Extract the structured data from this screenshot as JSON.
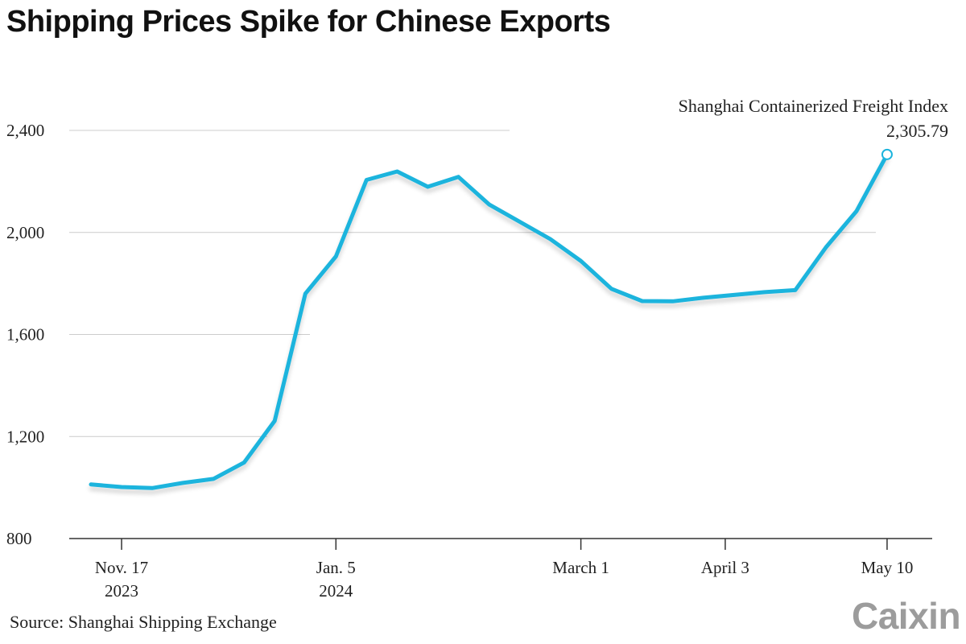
{
  "title": "Shipping Prices Spike for Chinese Exports",
  "source": "Source: Shanghai Shipping Exchange",
  "logo": "Caixin",
  "colors": {
    "line": "#1cb4dd",
    "grid": "#cccccc",
    "text": "#222222",
    "logo": "#9c9c9c"
  },
  "chart_data": {
    "type": "line",
    "title": "Shipping Prices Spike for Chinese Exports",
    "xlabel": "",
    "ylabel": "",
    "ylim": [
      800,
      2400
    ],
    "yticks": [
      {
        "value": 2400,
        "label": "2,400"
      },
      {
        "value": 2000,
        "label": "2,000"
      },
      {
        "value": 1600,
        "label": "1,600"
      },
      {
        "value": 1200,
        "label": "1,200"
      },
      {
        "value": 800,
        "label": "800"
      }
    ],
    "xlim": [
      "2023-11-10",
      "2024-05-17"
    ],
    "xticks": [
      {
        "date": "2023-11-17",
        "label": "Nov. 17",
        "sublabel": "2023"
      },
      {
        "date": "2024-01-05",
        "label": "Jan. 5",
        "sublabel": "2024"
      },
      {
        "date": "2024-03-01",
        "label": "March 1",
        "sublabel": ""
      },
      {
        "date": "2024-04-03",
        "label": "April 3",
        "sublabel": ""
      },
      {
        "date": "2024-05-10",
        "label": "May 10",
        "sublabel": ""
      }
    ],
    "series": [
      {
        "name": "Shanghai Containerized Freight Index",
        "points": [
          {
            "x": "2023-11-10",
            "y": 1012
          },
          {
            "x": "2023-11-17",
            "y": 1002
          },
          {
            "x": "2023-11-24",
            "y": 998
          },
          {
            "x": "2023-12-01",
            "y": 1018
          },
          {
            "x": "2023-12-08",
            "y": 1034
          },
          {
            "x": "2023-12-15",
            "y": 1098
          },
          {
            "x": "2023-12-22",
            "y": 1261
          },
          {
            "x": "2023-12-29",
            "y": 1760
          },
          {
            "x": "2024-01-05",
            "y": 1906
          },
          {
            "x": "2024-01-12",
            "y": 2206
          },
          {
            "x": "2024-01-19",
            "y": 2239
          },
          {
            "x": "2024-01-26",
            "y": 2179
          },
          {
            "x": "2024-02-02",
            "y": 2218
          },
          {
            "x": "2024-02-09",
            "y": 2110
          },
          {
            "x": "2024-02-23",
            "y": 1974
          },
          {
            "x": "2024-03-01",
            "y": 1888
          },
          {
            "x": "2024-03-08",
            "y": 1779
          },
          {
            "x": "2024-03-15",
            "y": 1731
          },
          {
            "x": "2024-03-22",
            "y": 1730
          },
          {
            "x": "2024-03-29",
            "y": 1744
          },
          {
            "x": "2024-04-12",
            "y": 1766
          },
          {
            "x": "2024-04-19",
            "y": 1774
          },
          {
            "x": "2024-04-26",
            "y": 1941
          },
          {
            "x": "2024-05-03",
            "y": 2083
          },
          {
            "x": "2024-05-10",
            "y": 2305.79
          }
        ]
      }
    ],
    "annotation": {
      "label": "Shanghai Containerized Freight Index",
      "value": "2,305.79",
      "x": "2024-05-10",
      "y": 2305.79
    },
    "grid": true,
    "legend": "none"
  }
}
